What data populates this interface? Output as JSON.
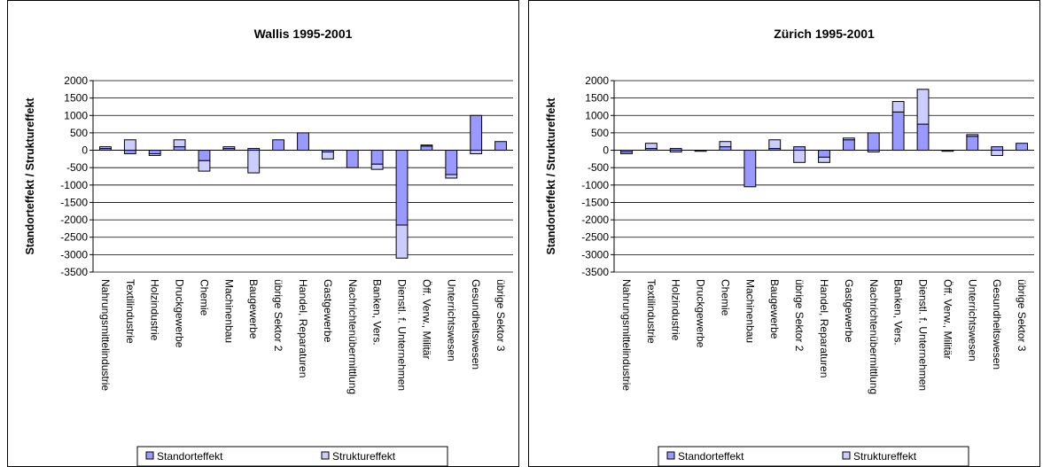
{
  "chart_data": [
    {
      "type": "bar",
      "stacked": true,
      "title": "Wallis 1995-2001",
      "ylabel": "Standorteffekt / Struktureffekt",
      "xlabel": "",
      "ylim": [
        -3500,
        2000
      ],
      "yticks": [
        2000,
        1500,
        1000,
        500,
        0,
        -500,
        -1000,
        -1500,
        -2000,
        -2500,
        -3000,
        -3500
      ],
      "gridlines": true,
      "legend_position": "bottom",
      "colors": {
        "Standorteffekt": "#9999ff",
        "Struktureffekt": "#ccccff"
      },
      "categories": [
        "Nahrungsmittelindustrie",
        "Textilindustrie",
        "Holzindustrie",
        "Druckgewerbe",
        "Chemie",
        "Machinenbau",
        "Baugewerbe",
        "übrige Sektor 2",
        "Handel, Reparaturen",
        "Gastgewerbe",
        "Nachrichtenübermittlung",
        "Banken, Vers.",
        "Dienstl. f. Unternehmen",
        "Öff. Verw., Militär",
        "Unterrichtswesen",
        "Gesundheitswesen",
        "übrige Sektor 3"
      ],
      "series": [
        {
          "name": "Standorteffekt",
          "values": [
            50,
            -100,
            -100,
            100,
            -300,
            50,
            50,
            300,
            500,
            -50,
            -500,
            -400,
            -2150,
            120,
            -700,
            1000,
            250
          ]
        },
        {
          "name": "Struktureffekt",
          "values": [
            50,
            300,
            -50,
            200,
            -300,
            50,
            -650,
            0,
            0,
            -200,
            0,
            -150,
            -950,
            30,
            -100,
            -100,
            0
          ]
        }
      ]
    },
    {
      "type": "bar",
      "stacked": true,
      "title": "Zürich 1995-2001",
      "ylabel": "Standorteffekt / Struktureffekt",
      "xlabel": "",
      "ylim": [
        -3500,
        2000
      ],
      "yticks": [
        2000,
        1500,
        1000,
        500,
        0,
        -500,
        -1000,
        -1500,
        -2000,
        -2500,
        -3000,
        -3500
      ],
      "gridlines": true,
      "legend_position": "bottom",
      "colors": {
        "Standorteffekt": "#9999ff",
        "Struktureffekt": "#ccccff"
      },
      "categories": [
        "Nahrungsmittelindustrie",
        "Textilindustrie",
        "Holzindustrie",
        "Druckgewerbe",
        "Chemie",
        "Machinenbau",
        "Baugewerbe",
        "übrige Sektor 2",
        "Handel, Reparaturen",
        "Gastgewerbe",
        "Nachrichtenübermittlung",
        "Banken, Vers.",
        "Dienstl. f. Unternehmen",
        "Öff. Verw., Militär",
        "Unterrichtswesen",
        "Gesundheitswesen",
        "übrige Sektor 3"
      ],
      "series": [
        {
          "name": "Standorteffekt",
          "values": [
            -50,
            50,
            50,
            -30,
            100,
            -1050,
            50,
            100,
            -200,
            300,
            500,
            1100,
            750,
            -30,
            400,
            100,
            200
          ]
        },
        {
          "name": "Struktureffekt",
          "values": [
            -50,
            150,
            -50,
            0,
            150,
            0,
            250,
            -350,
            -150,
            50,
            -50,
            300,
            1000,
            0,
            50,
            -150,
            0
          ]
        }
      ]
    }
  ]
}
